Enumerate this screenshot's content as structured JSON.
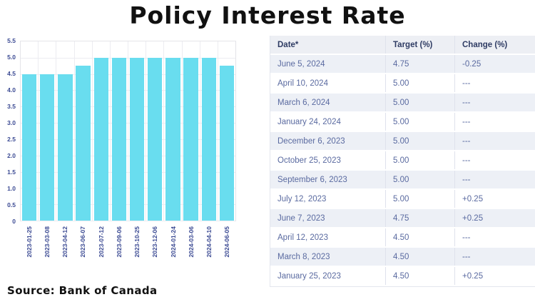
{
  "title": "Policy Interest Rate",
  "source": "Source: Bank of Canada",
  "colors": {
    "bar_fill": "#69DDEF",
    "axis_text": "#3B4A93",
    "table_header_text": "#2F3C64",
    "table_body_text": "#5A6AA0",
    "table_shaded_row": "#EDF0F6",
    "gridline": "#ECECF1"
  },
  "chart_data": {
    "type": "bar",
    "title": "",
    "xlabel": "",
    "ylabel": "",
    "categories": [
      "2023-01-25",
      "2023-03-08",
      "2023-04-12",
      "2023-06-07",
      "2023-07-12",
      "2023-09-06",
      "2023-10-25",
      "2023-12-06",
      "2024-01-24",
      "2024-03-06",
      "2024-04-10",
      "2024-06-05"
    ],
    "values": [
      4.5,
      4.5,
      4.5,
      4.75,
      5.0,
      5.0,
      5.0,
      5.0,
      5.0,
      5.0,
      5.0,
      4.75
    ],
    "ylim": [
      0,
      5.5
    ],
    "ytick_step": 0.5,
    "ytick_labels": [
      "5.5",
      "5.0",
      "4.5",
      "4.0",
      "3.5",
      "3.0",
      "2.5",
      "2.0",
      "1.5",
      "1.0",
      "0.5",
      "0"
    ],
    "grid": true,
    "legend": false
  },
  "table": {
    "columns": [
      "Date*",
      "Target (%)",
      "Change (%)"
    ],
    "rows": [
      {
        "date": "June 5, 2024",
        "target": "4.75",
        "change": "-0.25"
      },
      {
        "date": "April 10, 2024",
        "target": "5.00",
        "change": "---"
      },
      {
        "date": "March 6, 2024",
        "target": "5.00",
        "change": "---"
      },
      {
        "date": "January 24, 2024",
        "target": "5.00",
        "change": "---"
      },
      {
        "date": "December 6, 2023",
        "target": "5.00",
        "change": "---"
      },
      {
        "date": "October 25, 2023",
        "target": "5.00",
        "change": "---"
      },
      {
        "date": "September 6, 2023",
        "target": "5.00",
        "change": "---"
      },
      {
        "date": "July 12, 2023",
        "target": "5.00",
        "change": "+0.25"
      },
      {
        "date": "June 7, 2023",
        "target": "4.75",
        "change": "+0.25"
      },
      {
        "date": "April 12, 2023",
        "target": "4.50",
        "change": "---"
      },
      {
        "date": "March 8, 2023",
        "target": "4.50",
        "change": "---"
      },
      {
        "date": "January 25, 2023",
        "target": "4.50",
        "change": "+0.25"
      }
    ]
  }
}
